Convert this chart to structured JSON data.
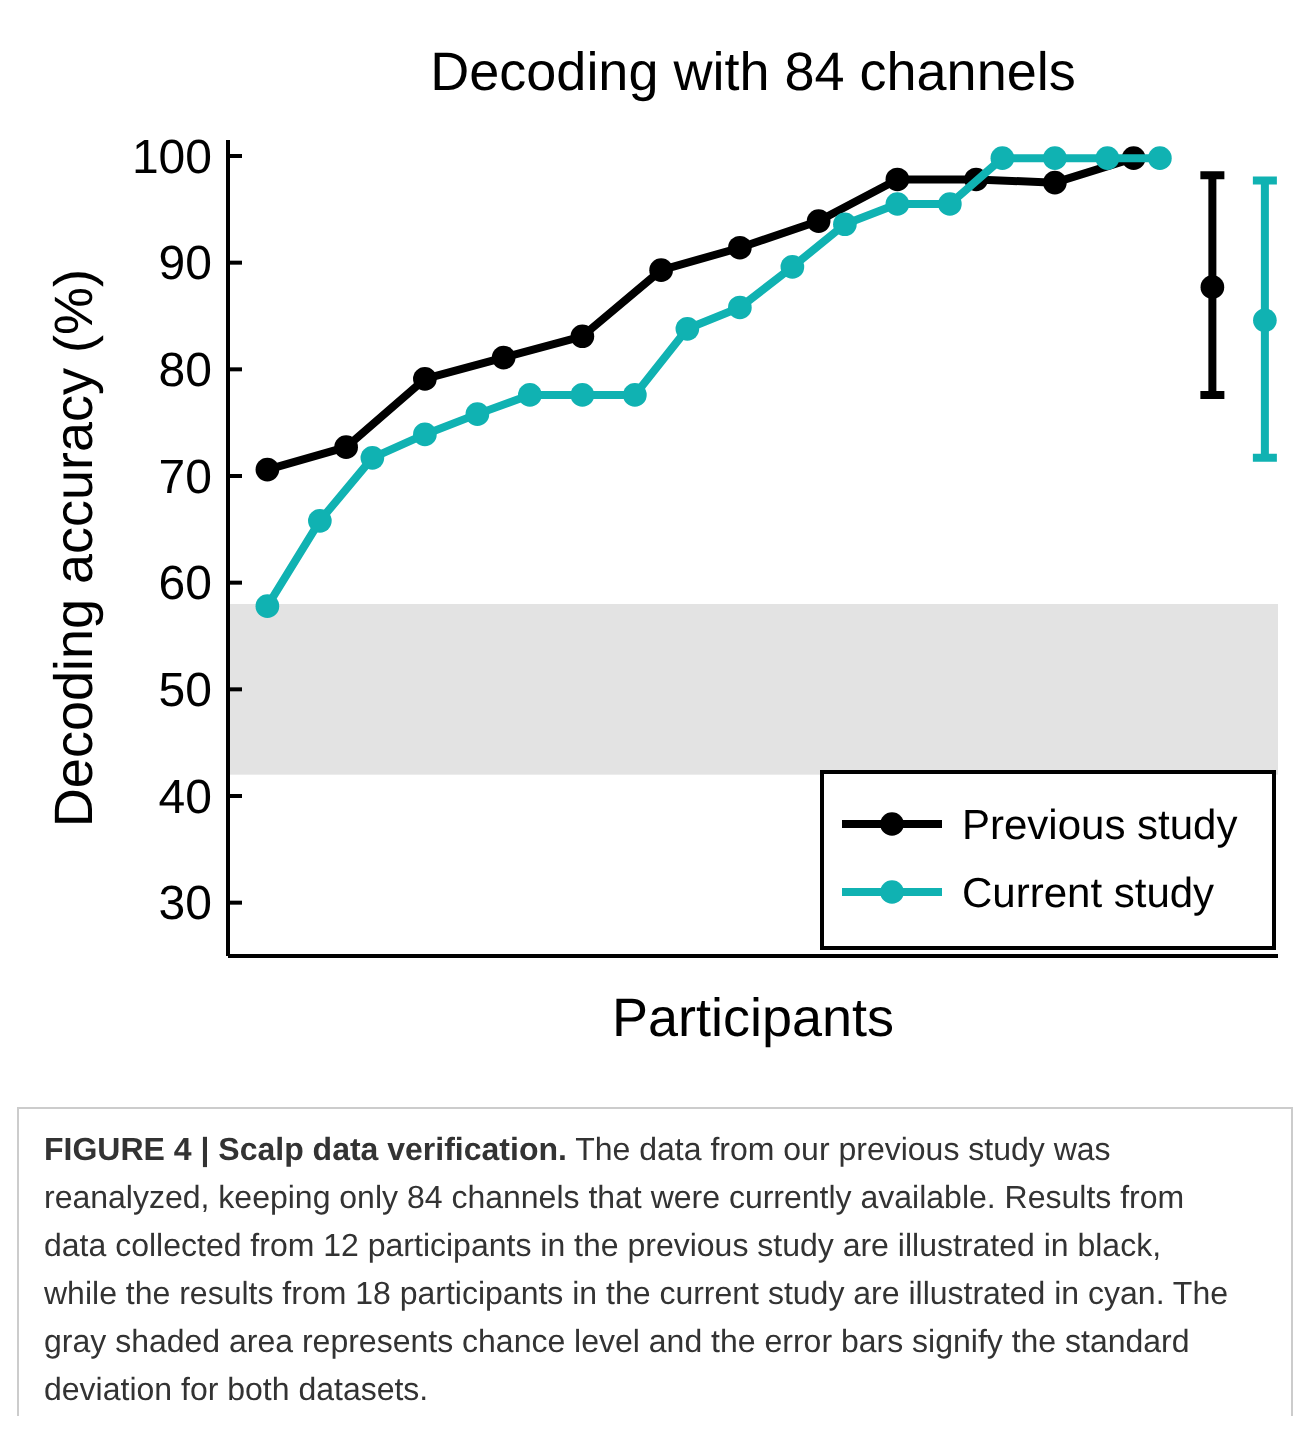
{
  "chart_data": {
    "type": "line",
    "title": "Decoding with 84 channels",
    "xlabel": "Participants",
    "ylabel": "Decoding accuracy (%)",
    "categories": [
      null,
      null,
      null,
      null,
      null,
      null,
      null,
      null,
      null,
      null,
      null,
      null,
      null,
      null,
      null,
      null,
      null,
      null,
      null,
      null,
      null,
      null,
      null,
      null,
      null,
      null,
      null,
      null,
      null,
      null,
      null,
      null,
      null,
      null,
      null,
      null,
      null,
      null,
      null,
      null
    ],
    "ylim": [
      25,
      101.5
    ],
    "yticks": [
      30,
      40,
      50,
      60,
      70,
      80,
      90,
      100
    ],
    "tick_labels": "y",
    "grid": false,
    "legend": "bottom right",
    "marker": "circle",
    "line_style": "solid",
    "series": [
      {
        "name": "Previous study",
        "color": "#000000",
        "values": [
          null,
          70.6,
          null,
          null,
          72.7,
          null,
          null,
          79.1,
          null,
          null,
          81.1,
          null,
          null,
          83.1,
          null,
          null,
          89.3,
          null,
          null,
          91.4,
          null,
          null,
          93.9,
          null,
          null,
          97.8,
          null,
          null,
          97.8,
          null,
          null,
          97.5,
          null,
          null,
          99.8,
          null,
          null,
          null,
          null,
          null
        ]
      },
      {
        "name": "Current study",
        "color": "#10b2b2",
        "values": [
          null,
          57.8,
          null,
          65.8,
          null,
          71.7,
          null,
          73.9,
          null,
          75.8,
          null,
          77.6,
          null,
          77.6,
          null,
          77.6,
          null,
          83.8,
          null,
          85.8,
          null,
          89.6,
          null,
          93.6,
          null,
          95.5,
          null,
          95.5,
          null,
          99.8,
          null,
          99.8,
          null,
          99.8,
          null,
          99.8,
          null,
          null,
          null,
          null
        ]
      },
      {
        "type": "scatter",
        "color": "#000000",
        "values": [
          null,
          null,
          null,
          null,
          null,
          null,
          null,
          null,
          null,
          null,
          null,
          null,
          null,
          null,
          null,
          null,
          null,
          null,
          null,
          null,
          null,
          null,
          null,
          null,
          null,
          null,
          null,
          null,
          null,
          null,
          null,
          null,
          null,
          null,
          null,
          null,
          null,
          87.7,
          null,
          null
        ],
        "errors": [
          null,
          null,
          null,
          null,
          null,
          null,
          null,
          null,
          null,
          null,
          null,
          null,
          null,
          null,
          null,
          null,
          null,
          null,
          null,
          null,
          null,
          null,
          null,
          null,
          null,
          null,
          null,
          null,
          null,
          null,
          null,
          null,
          null,
          null,
          null,
          null,
          null,
          [
            77.6,
            98.2
          ],
          null,
          null
        ]
      },
      {
        "type": "scatter",
        "color": "#10b2b2",
        "values": [
          null,
          null,
          null,
          null,
          null,
          null,
          null,
          null,
          null,
          null,
          null,
          null,
          null,
          null,
          null,
          null,
          null,
          null,
          null,
          null,
          null,
          null,
          null,
          null,
          null,
          null,
          null,
          null,
          null,
          null,
          null,
          null,
          null,
          null,
          null,
          null,
          null,
          null,
          null,
          84.6
        ],
        "errors": [
          null,
          null,
          null,
          null,
          null,
          null,
          null,
          null,
          null,
          null,
          null,
          null,
          null,
          null,
          null,
          null,
          null,
          null,
          null,
          null,
          null,
          null,
          null,
          null,
          null,
          null,
          null,
          null,
          null,
          null,
          null,
          null,
          null,
          null,
          null,
          null,
          null,
          null,
          null,
          [
            71.7,
            97.7
          ]
        ]
      }
    ],
    "bands": [
      {
        "axis": "y",
        "from": 42,
        "to": 58,
        "color": "#e3e3e3"
      }
    ],
    "annotations": [
      "FIGURE 4 | Scalp data verification.",
      "The data from our previous study was reanalyzed, keeping only 84 channels that were currently available. Results from data collected from 12 participants in the previous study are illustrated in black, while the results from 18 participants in the current study are illustrated in cyan. The gray shaded area represents chance level and the error bars signify the standard deviation for both datasets."
    ]
  }
}
